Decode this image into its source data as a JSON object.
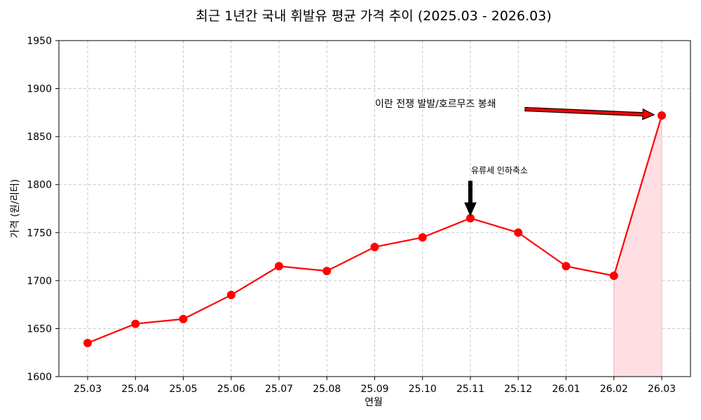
{
  "chart_data": {
    "type": "line",
    "title": "최근 1년간 국내 휘발유 평균 가격 추이 (2025.03 - 2026.03)",
    "xlabel": "연월",
    "ylabel": "가격 (원/리터)",
    "categories": [
      "25.03",
      "25.04",
      "25.05",
      "25.06",
      "25.07",
      "25.08",
      "25.09",
      "25.10",
      "25.11",
      "25.12",
      "26.01",
      "26.02",
      "26.03"
    ],
    "series": [
      {
        "name": "휘발유 평균 가격",
        "values": [
          1635,
          1655,
          1660,
          1685,
          1715,
          1710,
          1735,
          1745,
          1765,
          1750,
          1715,
          1705,
          1872
        ]
      }
    ],
    "ylim": [
      1600,
      1950
    ],
    "yticks": [
      1600,
      1650,
      1700,
      1750,
      1800,
      1850,
      1900,
      1950
    ],
    "grid": true,
    "colors": {
      "line": "#ff0000",
      "shade": "#ffdfe3",
      "shade_line": "#f4b4bc",
      "annotation_red": "#ff0000",
      "annotation_black": "#000000"
    },
    "shaded_range": [
      "26.02",
      "26.03"
    ],
    "annotations": [
      {
        "text": "유류세 인하축소",
        "target": "25.11",
        "color": "#000000"
      },
      {
        "text": "이란 전쟁 발발/호르무즈 봉쇄",
        "target": "26.03",
        "color": "#ff0000"
      }
    ]
  }
}
